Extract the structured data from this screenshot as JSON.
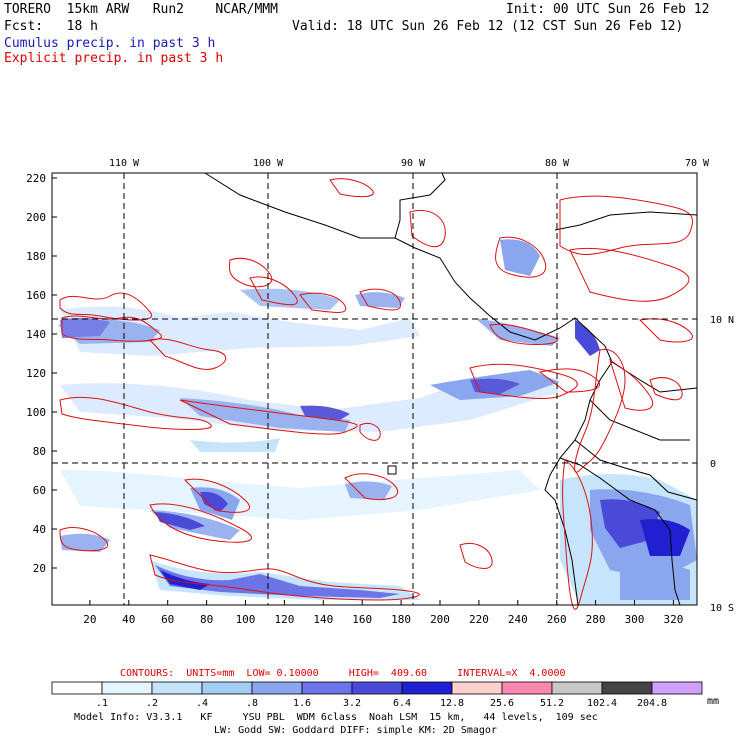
{
  "header": {
    "model_line": "TORERO  15km ARW   Run2    NCAR/MMM",
    "fcst_line": "Fcst:   18 h",
    "init_line": "Init: 00 UTC Sun 26 Feb 12",
    "valid_line": "Valid: 18 UTC Sun 26 Feb 12 (12 CST Sun 26 Feb 12)",
    "field1": "Cumulus precip. in past 3 h",
    "field2": "Explicit precip. in past 3 h"
  },
  "map": {
    "lon_labels": [
      "110 W",
      "100 W",
      "90 W",
      "80 W",
      "70 W"
    ],
    "lat_labels": [
      "10 N",
      "0",
      "10 S"
    ],
    "y_ticks": [
      "220",
      "200",
      "180",
      "160",
      "140",
      "120",
      "100",
      "80",
      "60",
      "40",
      "20"
    ],
    "x_ticks": [
      "20",
      "40",
      "60",
      "80",
      "100",
      "120",
      "140",
      "160",
      "180",
      "200",
      "220",
      "240",
      "260",
      "280",
      "300",
      "320"
    ]
  },
  "contours": {
    "label": "CONTOURS:  UNITS=mm  LOW= 0.10000     HIGH=  409.60     INTERVAL=X  4.0000"
  },
  "colorbar": {
    "labels": [
      ".1",
      ".2",
      ".4",
      ".8",
      "1.6",
      "3.2",
      "6.4",
      "12.8",
      "25.6",
      "51.2",
      "102.4",
      "204.8"
    ],
    "units": "mm",
    "colors": [
      "#ffffff",
      "#e6f4ff",
      "#c6e4fb",
      "#a2cef3",
      "#8aa6ee",
      "#6c74e8",
      "#4a4ad8",
      "#2020d0",
      "#ffd0d0",
      "#ff88b0",
      "#c8c8c8",
      "#444444",
      "#d0a0ff"
    ]
  },
  "footer": {
    "line1": "Model Info: V3.3.1   KF     YSU PBL  WDM 6class  Noah LSM  15 km,   44 levels,  109 sec",
    "line2": "LW: Godd SW: Goddard DIFF: simple KM: 2D Smagor"
  }
}
